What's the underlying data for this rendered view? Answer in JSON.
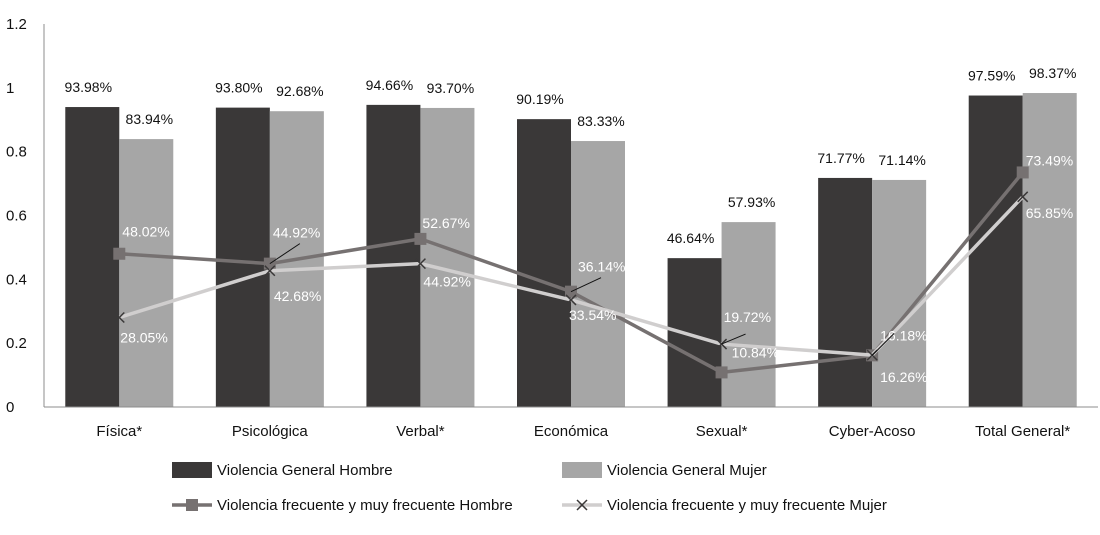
{
  "chart_data": {
    "type": "bar",
    "categories": [
      "Física*",
      "Psicológica",
      "Verbal*",
      "Económica",
      "Sexual*",
      "Cyber-Acoso",
      "Total General*"
    ],
    "ylim": [
      0,
      1.2
    ],
    "yticks": [
      "0",
      "0.2",
      "0.4",
      "0.6",
      "0.8",
      "1",
      "1.2"
    ],
    "grid": false,
    "legend_position": "bottom",
    "series": [
      {
        "name": "Violencia General Hombre",
        "kind": "bar",
        "color": "#3a3838",
        "values": [
          0.9398,
          0.938,
          0.9466,
          0.9019,
          0.4664,
          0.7177,
          0.9759
        ],
        "labels": [
          "93.98%",
          "93.80%",
          "94.66%",
          "90.19%",
          "46.64%",
          "71.77%",
          "97.59%"
        ]
      },
      {
        "name": "Violencia General Mujer",
        "kind": "bar",
        "color": "#a6a6a6",
        "values": [
          0.8394,
          0.9268,
          0.937,
          0.8333,
          0.5793,
          0.7114,
          0.9837
        ],
        "labels": [
          "83.94%",
          "92.68%",
          "93.70%",
          "83.33%",
          "57.93%",
          "71.14%",
          "98.37%"
        ]
      },
      {
        "name": "Violencia frecuente y muy frecuente Hombre",
        "kind": "line",
        "marker": "square",
        "color": "#767171",
        "values": [
          0.4802,
          0.4492,
          0.5267,
          0.3614,
          0.1084,
          0.1618,
          0.7349
        ],
        "labels": [
          "48.02%",
          "44.92%",
          "52.67%",
          "36.14%",
          "10.84%",
          "16.18%",
          "73.49%"
        ]
      },
      {
        "name": "Violencia frecuente y muy frecuente Mujer",
        "kind": "line",
        "marker": "x",
        "color": "#d0cece",
        "values": [
          0.2805,
          0.4268,
          0.4492,
          0.3354,
          0.1972,
          0.1626,
          0.6585
        ],
        "labels": [
          "28.05%",
          "42.68%",
          "44.92%",
          "33.54%",
          "19.72%",
          "16.26%",
          "65.85%"
        ]
      }
    ]
  }
}
